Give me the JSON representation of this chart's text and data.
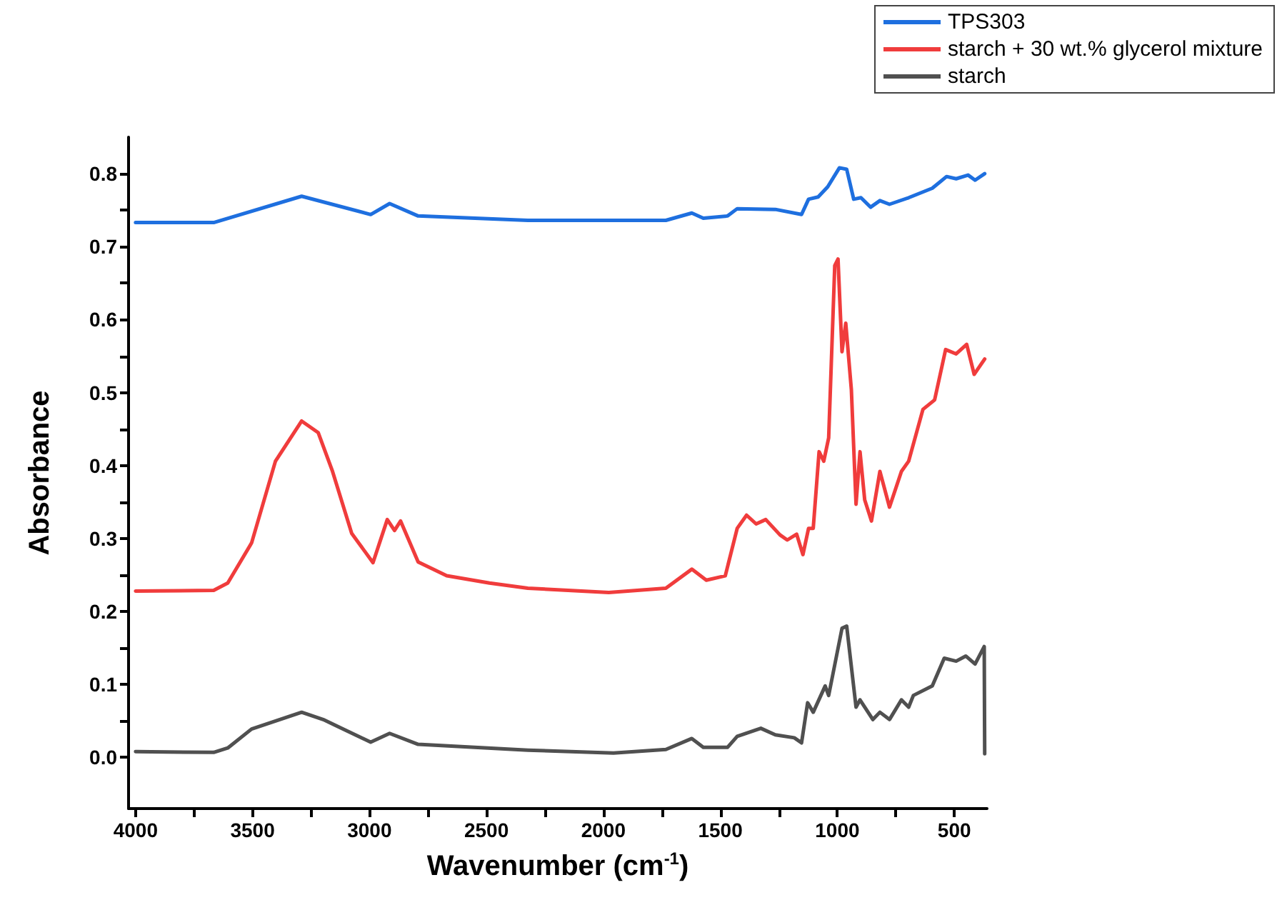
{
  "chart_data": {
    "type": "line",
    "xlabel": "Wavenumber (cm$^{-1}$)",
    "ylabel": "Absorbance",
    "xlim": [
      4030,
      360
    ],
    "xticks": [
      4000,
      {
        "value": 3750,
        "label": null
      },
      3500,
      {
        "value": 3250,
        "label": null
      },
      3000,
      {
        "value": 2750,
        "label": null
      },
      2500,
      {
        "value": 2250,
        "label": null
      },
      2000,
      {
        "value": 1750,
        "label": null
      },
      1500,
      {
        "value": 1250,
        "label": null
      },
      1000,
      {
        "value": 750,
        "label": null
      },
      500
    ],
    "ylim": [
      -0.07,
      0.85
    ],
    "yticks": [
      {
        "value": 0,
        "label": "0.0"
      },
      {
        "value": 0.05,
        "label": null
      },
      {
        "value": 0.1,
        "label": "0.1"
      },
      {
        "value": 0.15,
        "label": null
      },
      {
        "value": 0.2,
        "label": "0.2"
      },
      {
        "value": 0.25,
        "label": null
      },
      {
        "value": 0.3,
        "label": "0.3"
      },
      {
        "value": 0.35,
        "label": null
      },
      {
        "value": 0.4,
        "label": "0.4"
      },
      {
        "value": 0.45,
        "label": null
      },
      {
        "value": 0.5,
        "label": "0.5"
      },
      {
        "value": 0.55,
        "label": null
      },
      {
        "value": 0.6,
        "label": "0.6"
      },
      {
        "value": 0.65,
        "label": null
      },
      {
        "value": 0.7,
        "label": "0.7"
      },
      {
        "value": 0.75,
        "label": null
      },
      {
        "value": 0.8,
        "label": "0.8"
      }
    ],
    "grid": false,
    "legend": "top right",
    "marker": "none",
    "line_style": "solid",
    "series": [
      {
        "name": "TPS303",
        "color": "#1e6fdf",
        "x": [
          4000,
          3666,
          3290,
          2995,
          2914,
          2792,
          2323,
          1733,
          1622,
          1573,
          1469,
          1428,
          1265,
          1153,
          1123,
          1082,
          1041,
          991,
          960,
          930,
          899,
          858,
          818,
          777,
          695,
          594,
          533,
          492,
          441,
          411,
          370
        ],
        "values": [
          0.733,
          0.733,
          0.769,
          0.744,
          0.759,
          0.742,
          0.736,
          0.736,
          0.746,
          0.739,
          0.742,
          0.752,
          0.751,
          0.744,
          0.765,
          0.768,
          0.782,
          0.808,
          0.806,
          0.765,
          0.767,
          0.754,
          0.763,
          0.758,
          0.767,
          0.78,
          0.796,
          0.793,
          0.798,
          0.791,
          0.8
        ]
      },
      {
        "name": "starch + 30 wt.% glycerol mixture",
        "color": "#f03c3c",
        "x": [
          4000,
          3666,
          3606,
          3504,
          3402,
          3290,
          3219,
          3158,
          3076,
          2985,
          2924,
          2893,
          2867,
          2792,
          2670,
          2487,
          2323,
          1977,
          1733,
          1622,
          1560,
          1479,
          1428,
          1388,
          1347,
          1306,
          1245,
          1214,
          1174,
          1147,
          1123,
          1103,
          1078,
          1058,
          1037,
          1011,
          997,
          980,
          964,
          940,
          920,
          903,
          883,
          854,
          818,
          777,
          726,
          695,
          634,
          584,
          537,
          492,
          447,
          415,
          370
        ],
        "values": [
          0.228,
          0.229,
          0.239,
          0.294,
          0.406,
          0.461,
          0.445,
          0.392,
          0.307,
          0.267,
          0.326,
          0.311,
          0.324,
          0.268,
          0.249,
          0.239,
          0.232,
          0.226,
          0.232,
          0.258,
          0.243,
          0.249,
          0.314,
          0.332,
          0.32,
          0.326,
          0.305,
          0.298,
          0.306,
          0.278,
          0.314,
          0.314,
          0.419,
          0.406,
          0.438,
          0.674,
          0.683,
          0.556,
          0.595,
          0.504,
          0.347,
          0.419,
          0.353,
          0.324,
          0.392,
          0.343,
          0.392,
          0.406,
          0.477,
          0.49,
          0.559,
          0.553,
          0.566,
          0.525,
          0.546
        ]
      },
      {
        "name": "starch",
        "color": "#505050",
        "x": [
          4000,
          3666,
          3606,
          3504,
          3290,
          3198,
          2995,
          2914,
          2792,
          2323,
          1957,
          1733,
          1622,
          1573,
          1469,
          1428,
          1327,
          1265,
          1184,
          1153,
          1127,
          1103,
          1052,
          1037,
          980,
          960,
          920,
          903,
          848,
          818,
          777,
          726,
          695,
          675,
          594,
          543,
          492,
          451,
          411,
          372,
          370
        ],
        "values": [
          0.008,
          0.007,
          0.013,
          0.039,
          0.062,
          0.052,
          0.021,
          0.033,
          0.018,
          0.01,
          0.006,
          0.011,
          0.026,
          0.014,
          0.014,
          0.029,
          0.04,
          0.031,
          0.027,
          0.02,
          0.075,
          0.062,
          0.098,
          0.085,
          0.177,
          0.18,
          0.069,
          0.079,
          0.052,
          0.062,
          0.052,
          0.079,
          0.069,
          0.085,
          0.098,
          0.136,
          0.132,
          0.139,
          0.128,
          0.152,
          0.005
        ]
      }
    ]
  }
}
